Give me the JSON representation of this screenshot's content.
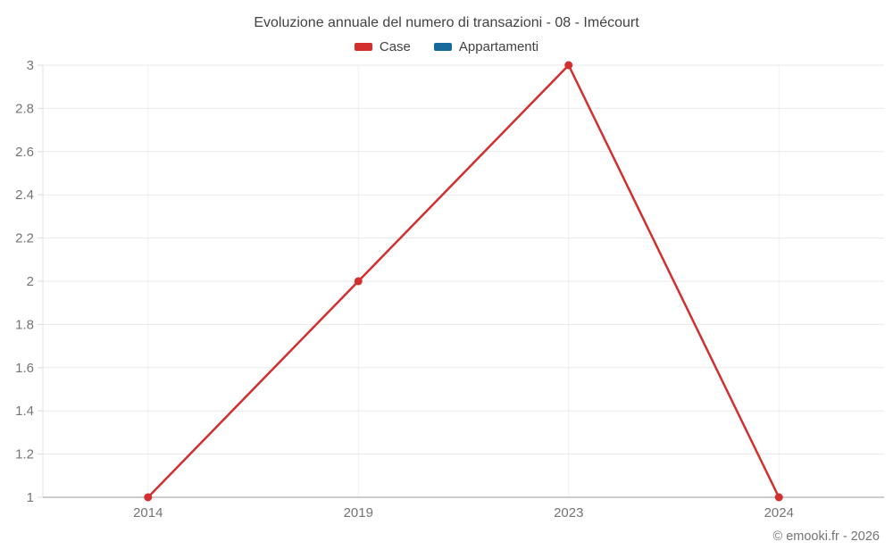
{
  "chart_data": {
    "type": "line",
    "title": "Evoluzione annuale del numero di transazioni - 08 - Imécourt",
    "categories": [
      "2014",
      "2019",
      "2023",
      "2024"
    ],
    "series": [
      {
        "name": "Case",
        "color": "#d32f2f",
        "values": [
          1,
          2,
          3,
          1
        ]
      },
      {
        "name": "Appartamenti",
        "color": "#15699b",
        "values": []
      }
    ],
    "ylim": [
      1,
      3
    ],
    "y_tick_step": 0.2,
    "y_tick_labels": [
      "1",
      "1.2",
      "1.4",
      "1.6",
      "1.8",
      "2",
      "2.2",
      "2.4",
      "2.6",
      "2.8",
      "3"
    ],
    "xlabel": "",
    "ylabel": "",
    "grid": "on",
    "legend_position": "top",
    "marker": "circle",
    "text_color": "#424242",
    "tick_color": "#757575",
    "gridline_color": "#e9e9e9",
    "axis_line_color": "#cccccc"
  },
  "footer": {
    "credit": "© emooki.fr - 2026"
  }
}
